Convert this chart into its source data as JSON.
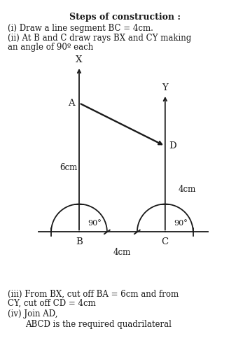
{
  "title": "Steps of construction :",
  "line1": "(i) Draw a line segment BC = 4cm.",
  "line2a": "(ii) At B and C draw rays BX and CY making",
  "line2b": "an angle of 90º each",
  "line3a": "(iii) From BX, cut off BA = 6cm and from",
  "line3b": "CY, cut off CD = 4cm",
  "line4a": "(iv) Join AD,",
  "line4b": "     ABCD is the required quadrilateral",
  "B": [
    0,
    0
  ],
  "C": [
    4,
    0
  ],
  "A": [
    0,
    6
  ],
  "D": [
    4,
    4
  ],
  "bg_color": "#ffffff",
  "line_color": "#1a1a1a",
  "font_color": "#1a1a1a",
  "r_arc": 1.3,
  "xlim": [
    -2.0,
    6.5
  ],
  "ylim": [
    -2.5,
    8.0
  ]
}
